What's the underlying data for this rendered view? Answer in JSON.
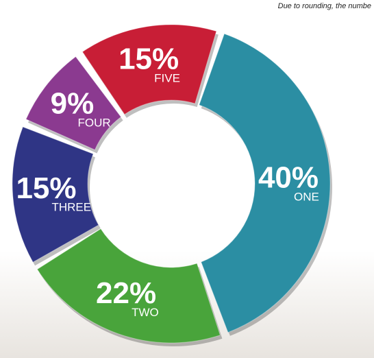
{
  "chart_data": {
    "type": "donut",
    "note": "Due to rounding, the numbe",
    "categories": [
      "ONE",
      "TWO",
      "THREE",
      "FOUR",
      "FIVE"
    ],
    "values": [
      40,
      22,
      15,
      9,
      15
    ],
    "value_labels": [
      "40%",
      "22%",
      "15%",
      "9%",
      "15%"
    ],
    "colors": [
      "#2b8ea3",
      "#49a43b",
      "#2f3585",
      "#8b3a90",
      "#c81e36"
    ]
  }
}
